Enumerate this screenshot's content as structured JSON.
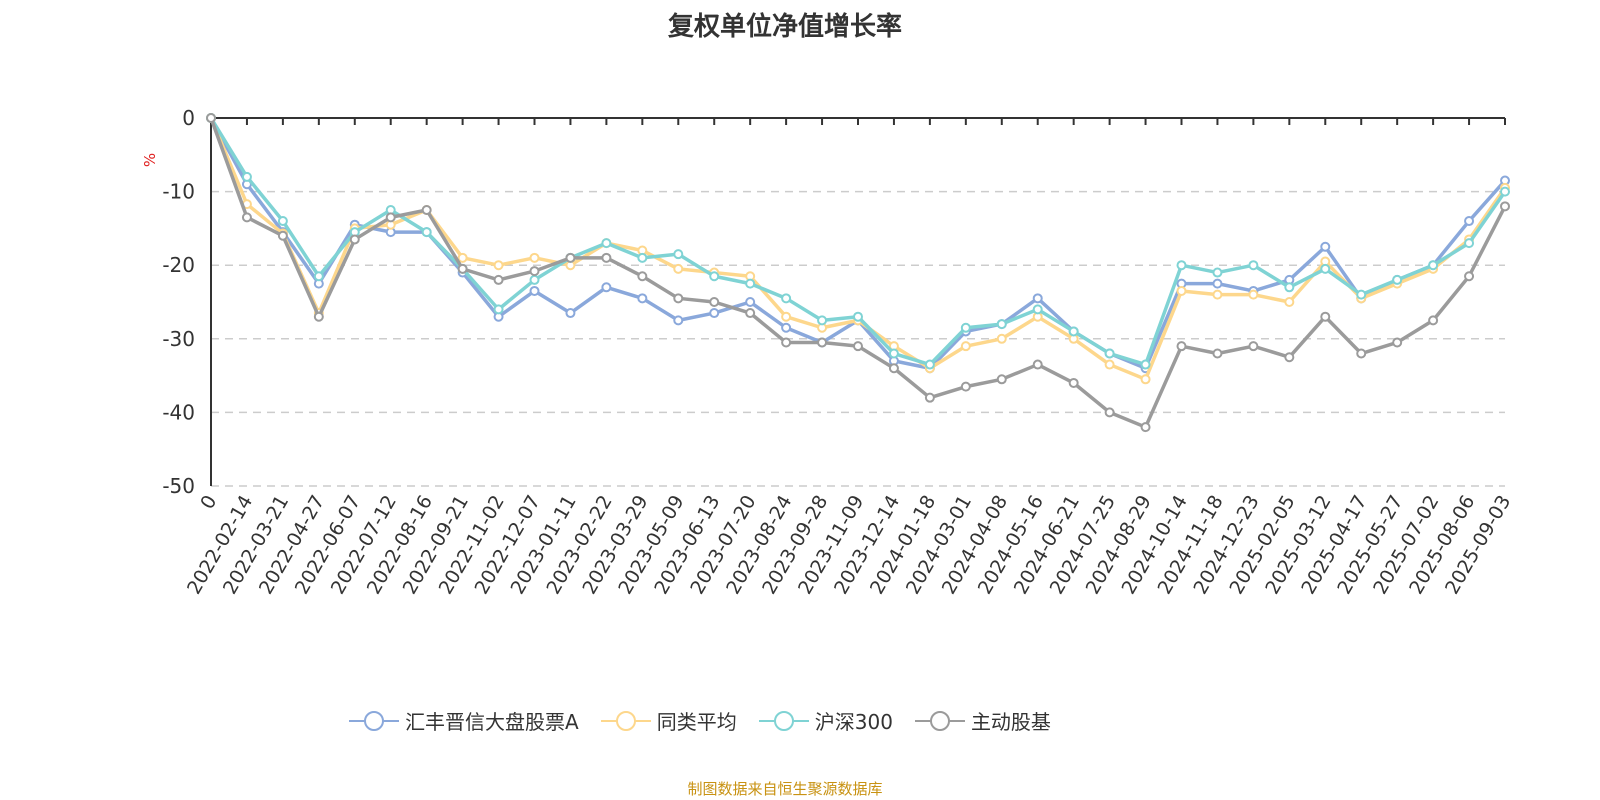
{
  "chart_data": {
    "type": "line",
    "title": "复权单位净值增长率",
    "ylabel": "%",
    "ylim": [
      -50,
      0
    ],
    "yticks": [
      0,
      -10,
      -20,
      -30,
      -40,
      -50
    ],
    "grid": true,
    "legend_position": "bottom",
    "categories": [
      "0",
      "2022-02-14",
      "2022-03-21",
      "2022-04-27",
      "2022-06-07",
      "2022-07-12",
      "2022-08-16",
      "2022-09-21",
      "2022-11-02",
      "2022-12-07",
      "2023-01-11",
      "2023-02-22",
      "2023-03-29",
      "2023-05-09",
      "2023-06-13",
      "2023-07-20",
      "2023-08-24",
      "2023-09-28",
      "2023-11-09",
      "2023-12-14",
      "2024-01-18",
      "2024-03-01",
      "2024-04-08",
      "2024-05-16",
      "2024-06-21",
      "2024-07-25",
      "2024-08-29",
      "2024-10-14",
      "2024-11-18",
      "2024-12-23",
      "2025-02-05",
      "2025-03-12",
      "2025-04-17",
      "2025-05-27",
      "2025-07-02",
      "2025-08-06",
      "2025-09-03"
    ],
    "series": [
      {
        "name": "汇丰晋信大盘股票A",
        "color": "#8aa8db",
        "values": [
          0,
          -9,
          -15.5,
          -22.5,
          -14.5,
          -15.5,
          -15.5,
          -21,
          -27,
          -23.5,
          -26.5,
          -23,
          -24.5,
          -27.5,
          -26.5,
          -25,
          -28.5,
          -30.5,
          -27.5,
          -33,
          -34,
          -29,
          -28,
          -24.5,
          -29,
          -32,
          -34,
          -22.5,
          -22.5,
          -23.5,
          -22,
          -17.5,
          -24.5,
          -22,
          -20,
          -14,
          -8.5
        ]
      },
      {
        "name": "同类平均",
        "color": "#fdd78c",
        "values": [
          0,
          -11.7,
          -15.7,
          -26.5,
          -15,
          -14.5,
          -12.5,
          -19,
          -20,
          -19,
          -20,
          -17,
          -18,
          -20.5,
          -21,
          -21.5,
          -27,
          -28.5,
          -27.5,
          -31,
          -34,
          -31,
          -30,
          -27,
          -30,
          -33.5,
          -35.5,
          -23.5,
          -24,
          -24,
          -25,
          -19.5,
          -24.5,
          -22.5,
          -20.5,
          -16.5,
          -9.5
        ]
      },
      {
        "name": "沪深300",
        "color": "#7fd3d4",
        "values": [
          0,
          -8,
          -14,
          -21.5,
          -15.5,
          -12.5,
          -15.5,
          -20.5,
          -26,
          -22,
          -19,
          -17,
          -19,
          -18.5,
          -21.5,
          -22.5,
          -24.5,
          -27.5,
          -27,
          -32,
          -33.5,
          -28.5,
          -28,
          -26,
          -29,
          -32,
          -33.5,
          -20,
          -21,
          -20,
          -23,
          -20.5,
          -24,
          -22,
          -20,
          -17,
          -10
        ]
      },
      {
        "name": "主动股基",
        "color": "#9b9b9b",
        "values": [
          0,
          -13.5,
          -16,
          -27,
          -16.5,
          -13.5,
          -12.5,
          -20.5,
          -22,
          -20.8,
          -19,
          -19,
          -21.5,
          -24.5,
          -25,
          -26.5,
          -30.5,
          -30.5,
          -31,
          -34,
          -38,
          -36.5,
          -35.5,
          -33.5,
          -36,
          -40,
          -42,
          -31,
          -32,
          -31,
          -32.5,
          -27,
          -32,
          -30.5,
          -27.5,
          -21.5,
          -12
        ]
      }
    ]
  },
  "source": "制图数据来自恒生聚源数据库"
}
